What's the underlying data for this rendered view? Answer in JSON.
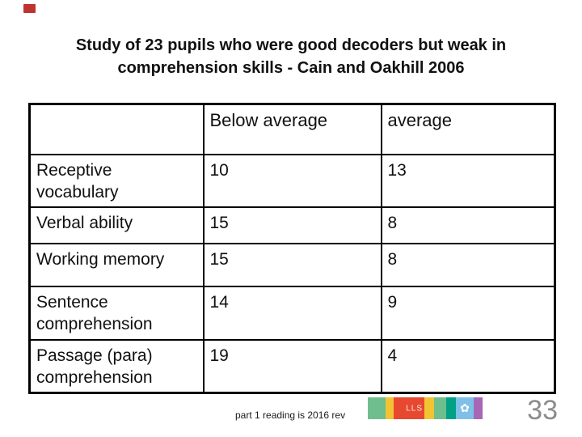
{
  "title": {
    "line1": "Study of 23 pupils who were good decoders but weak in",
    "line2": "comprehension skills - Cain and Oakhill 2006"
  },
  "table": {
    "headers": [
      "",
      "Below average",
      "average"
    ],
    "rows": [
      [
        "Receptive vocabulary",
        "10",
        "13"
      ],
      [
        "Verbal ability",
        "15",
        "8"
      ],
      [
        "Working memory",
        "15",
        "8"
      ],
      [
        "Sentence comprehension",
        "14",
        "9"
      ],
      [
        "Passage (para) comprehension",
        "19",
        "4"
      ]
    ]
  },
  "footer": {
    "note": "part 1 reading is 2016 rev",
    "page_number": "33",
    "logo": {
      "text": "LLS",
      "flower_icon_glyph": "✿",
      "segment_colors": [
        "#6fbe8d",
        "#f2c433",
        "#e6492f",
        "#f2c433",
        "#6fbe8d",
        "#00a184",
        "#7fc0e8",
        "#a867b6"
      ]
    }
  },
  "decoration": {
    "red_mark_color": "#bf3330"
  }
}
